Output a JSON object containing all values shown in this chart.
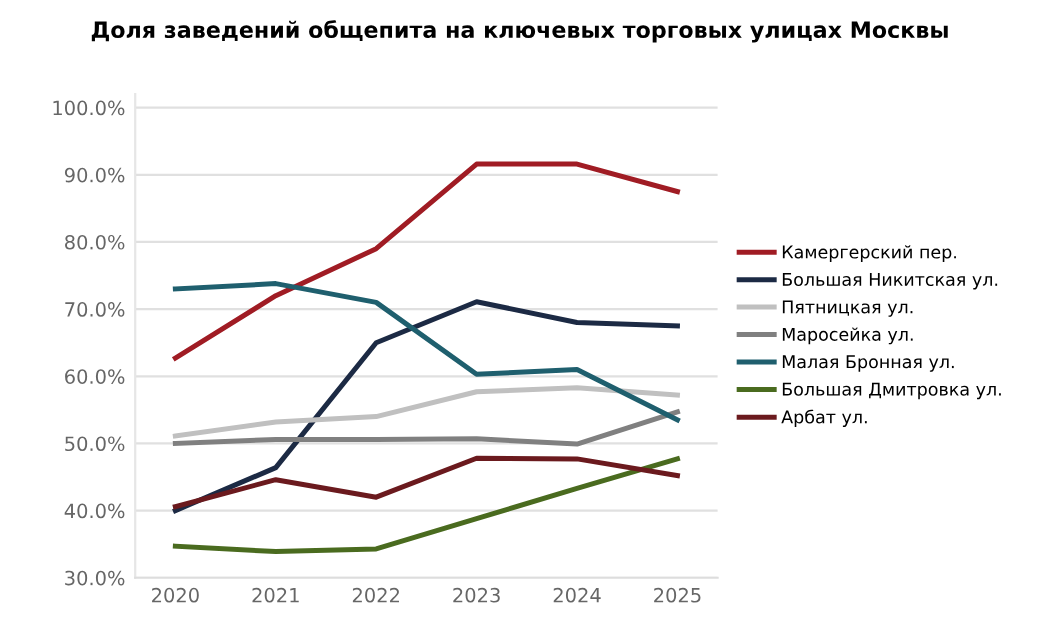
{
  "chart_data": {
    "type": "line",
    "title": "Доля заведений общепита на ключевых торговых улицах Москвы",
    "x": [
      2020,
      2021,
      2022,
      2023,
      2024,
      2025
    ],
    "xlim": [
      2019.6,
      2025.4
    ],
    "xticks": [
      2020,
      2021,
      2022,
      2023,
      2024,
      2025
    ],
    "ylim": [
      30,
      102
    ],
    "yticks": [
      {
        "value": 30,
        "label": "30.0%"
      },
      {
        "value": 40,
        "label": "40.0%"
      },
      {
        "value": 50,
        "label": "50.0%"
      },
      {
        "value": 60,
        "label": "60.0%"
      },
      {
        "value": 70,
        "label": "70.0%"
      },
      {
        "value": 80,
        "label": "80.0%"
      },
      {
        "value": 90,
        "label": "90.0%"
      },
      {
        "value": 100,
        "label": "100.0%"
      }
    ],
    "grid": "y",
    "legend": "right",
    "marker": "none",
    "line_style": "solid",
    "series": [
      {
        "name": "Камергерский пер.",
        "color": "#a01c24",
        "values": [
          62.7,
          72,
          79,
          91.6,
          91.6,
          87.5
        ]
      },
      {
        "name": "Большая Никитская ул.",
        "color": "#1c2a44",
        "values": [
          40,
          46.4,
          65,
          71.1,
          68,
          67.5
        ]
      },
      {
        "name": "Пятницкая ул.",
        "color": "#c0c0c0",
        "values": [
          51.1,
          53.2,
          54,
          57.7,
          58.3,
          57.2
        ]
      },
      {
        "name": "Маросейка ул.",
        "color": "#808080",
        "values": [
          50,
          50.6,
          50.6,
          50.7,
          49.9,
          54.7
        ]
      },
      {
        "name": "Малая Бронная ул.",
        "color": "#1f5f6e",
        "values": [
          73,
          73.8,
          71,
          60.3,
          61,
          53.5
        ]
      },
      {
        "name": "Большая Дмитровка ул.",
        "color": "#4a6b1f",
        "values": [
          34.7,
          33.9,
          34.3,
          38.8,
          43.3,
          47.7
        ]
      },
      {
        "name": "Арбат ул.",
        "color": "#6b1a1e",
        "values": [
          40.6,
          44.6,
          42,
          47.8,
          47.7,
          45.2
        ]
      }
    ]
  }
}
